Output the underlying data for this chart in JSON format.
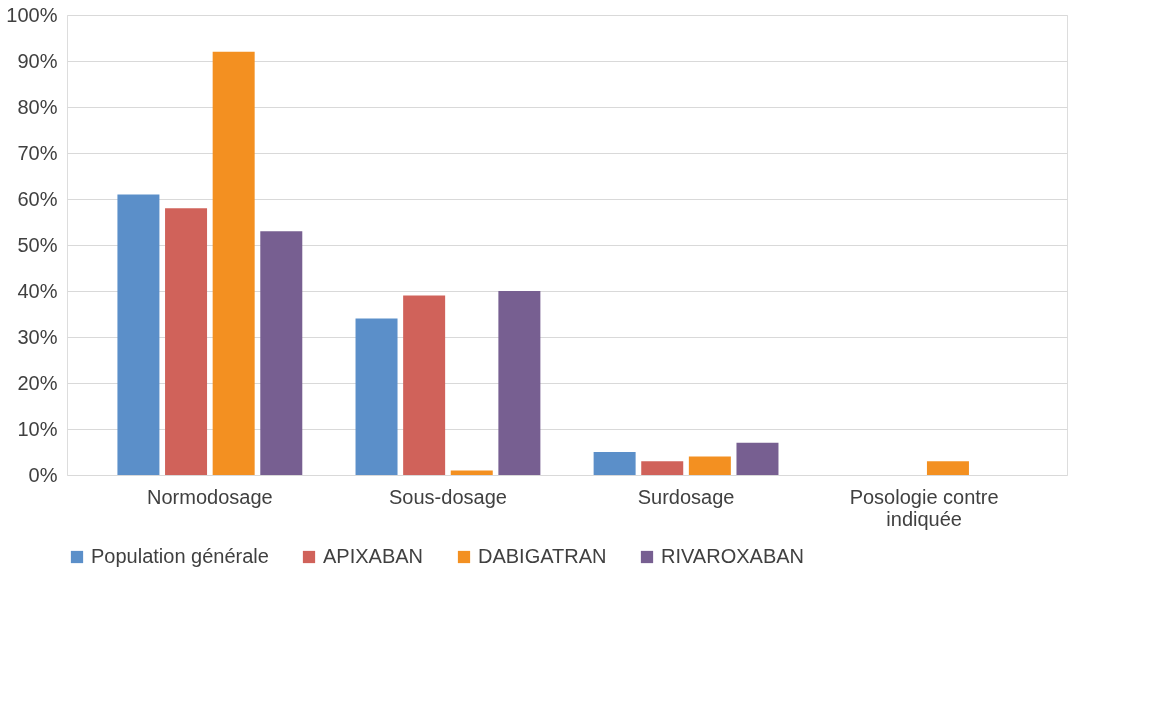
{
  "chart_data": {
    "type": "bar",
    "categories": [
      "Normodosage",
      "Sous-dosage",
      "Surdosage",
      "Posologie contre indiquée"
    ],
    "series": [
      {
        "name": "Population générale",
        "color": "#5b8fc9",
        "values": [
          61,
          34,
          5,
          0
        ]
      },
      {
        "name": "APIXABAN",
        "color": "#d0625a",
        "values": [
          58,
          39,
          3,
          0
        ]
      },
      {
        "name": "DABIGATRAN",
        "color": "#f39021",
        "values": [
          92,
          1,
          4,
          3
        ]
      },
      {
        "name": "RIVAROXABAN",
        "color": "#775f91",
        "values": [
          53,
          40,
          7,
          0
        ]
      }
    ],
    "ylim": [
      0,
      100
    ],
    "yticks": [
      {
        "value": 0,
        "label": "0%"
      },
      {
        "value": 10,
        "label": "10%"
      },
      {
        "value": 20,
        "label": "20%"
      },
      {
        "value": 30,
        "label": "30%"
      },
      {
        "value": 40,
        "label": "40%"
      },
      {
        "value": 50,
        "label": "50%"
      },
      {
        "value": 60,
        "label": "60%"
      },
      {
        "value": 70,
        "label": "70%"
      },
      {
        "value": 80,
        "label": "80%"
      },
      {
        "value": 90,
        "label": "90%"
      },
      {
        "value": 100,
        "label": "100%"
      }
    ],
    "grid": "y",
    "legend": "bottom"
  }
}
